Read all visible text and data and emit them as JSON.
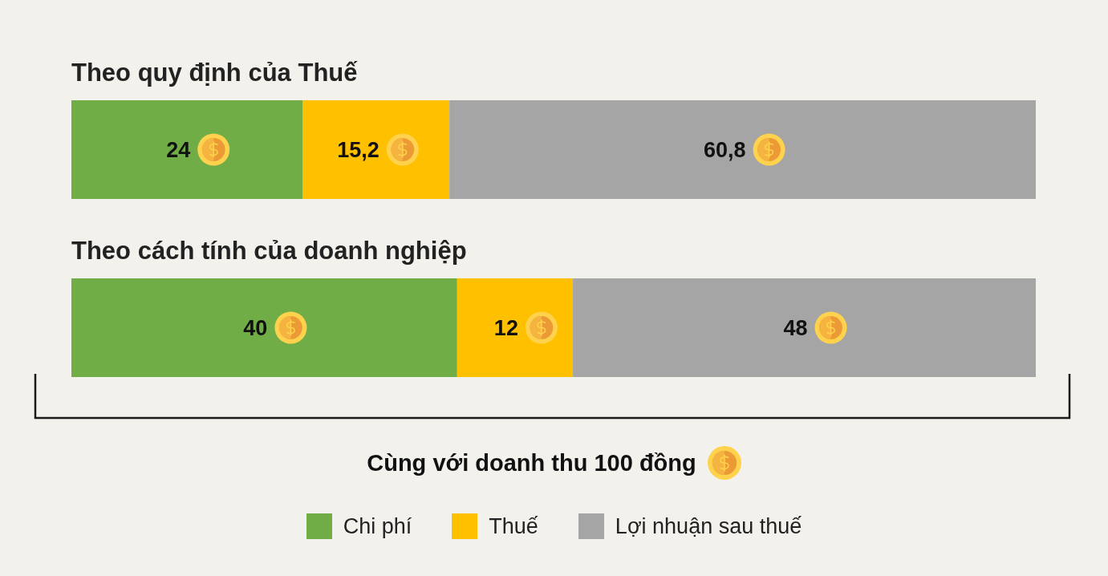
{
  "chart_data": {
    "type": "bar",
    "orientation": "horizontal",
    "stacked": true,
    "categories": [
      "Theo quy định của Thuế",
      "Theo cách tính của doanh nghiệp"
    ],
    "series": [
      {
        "name": "Chi phí",
        "color": "#70ad47",
        "values": [
          24,
          40
        ],
        "value_labels": [
          "24",
          "40"
        ]
      },
      {
        "name": "Thuế",
        "color": "#ffc000",
        "values": [
          15.2,
          12
        ],
        "value_labels": [
          "15,2",
          "12"
        ]
      },
      {
        "name": "Lợi nhuận sau thuế",
        "color": "#a5a5a5",
        "values": [
          60.8,
          48
        ],
        "value_labels": [
          "60,8",
          "48"
        ]
      }
    ],
    "xlim": [
      0,
      100
    ],
    "tick_labels": false,
    "grid": false,
    "legend": "bottom",
    "annotations": [
      "Cùng với doanh thu 100 đồng"
    ]
  }
}
